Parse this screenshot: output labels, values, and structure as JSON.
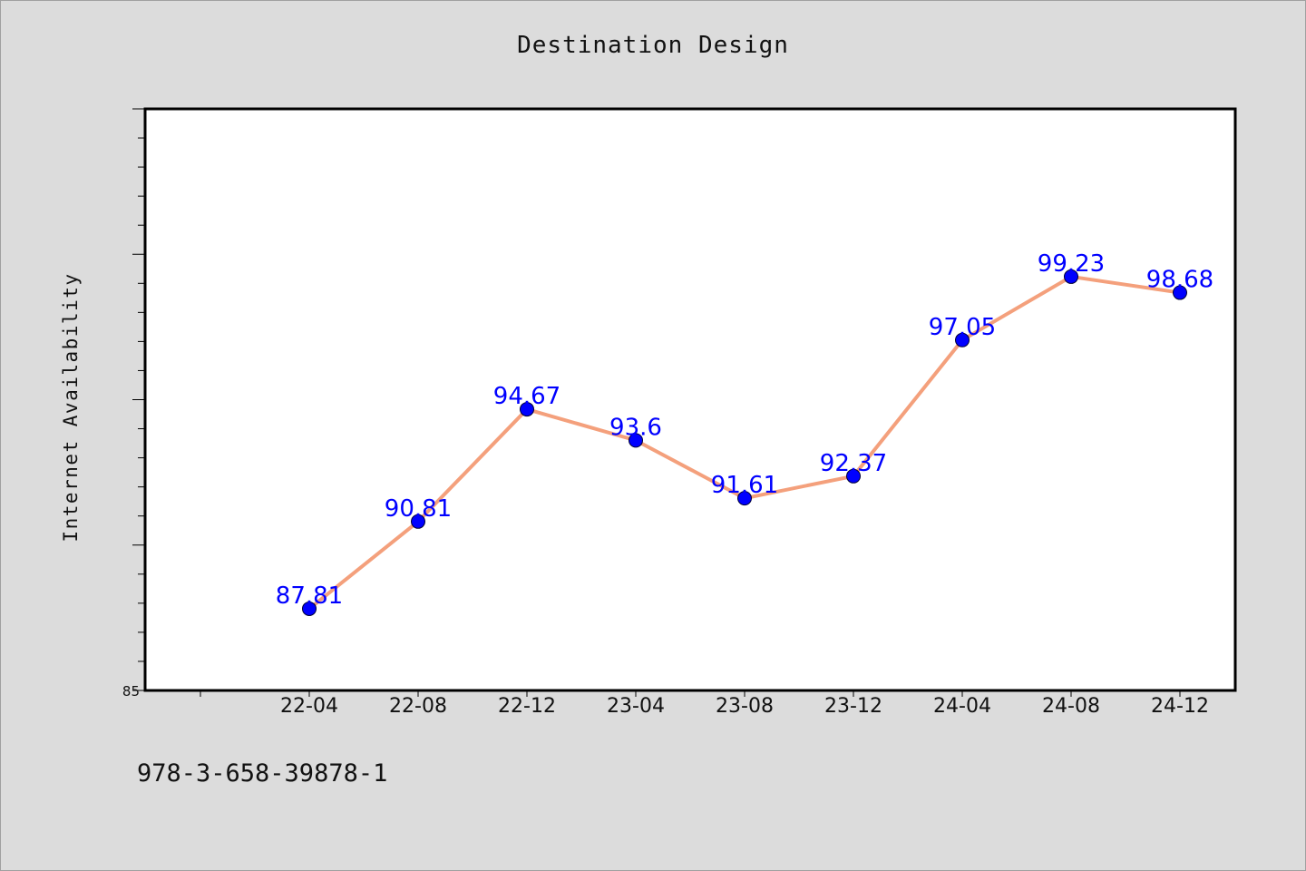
{
  "title": "Destination Design",
  "footer": "978-3-658-39878-1",
  "chart_data": {
    "type": "line",
    "title": "Destination Design",
    "xlabel": "",
    "ylabel": "Internet Availability",
    "categories": [
      "22-04",
      "22-08",
      "22-12",
      "23-04",
      "23-08",
      "23-12",
      "24-04",
      "24-08",
      "24-12"
    ],
    "series": [
      {
        "values": [
          87.81,
          90.81,
          94.67,
          93.6,
          91.61,
          92.37,
          97.05,
          99.23,
          98.68
        ],
        "data_labels": [
          "87.81",
          "90.81",
          "94.67",
          "93.6",
          "91.61",
          "92.37",
          "97.05",
          "99.23",
          "98.68"
        ],
        "line_color": "#f4a07c",
        "marker_color": "#0000ff"
      }
    ],
    "ylim": [
      85,
      105
    ],
    "yticks_labeled": [
      "85"
    ],
    "legend": "none",
    "grid": false,
    "plot_background": "#ffffff",
    "page_background": "#dcdcdc"
  }
}
